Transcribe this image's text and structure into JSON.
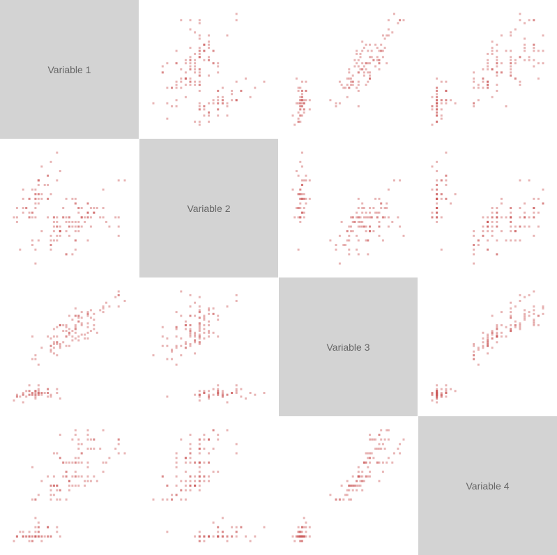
{
  "chart_data": {
    "type": "scatter",
    "title": "",
    "variables": [
      "Variable 1",
      "Variable 2",
      "Variable 3",
      "Variable 4"
    ],
    "diagonal_color": "#d3d3d3",
    "point_color": "#cd5c5c",
    "grid": false,
    "note": "Scatterplot matrix; cell (row i, col j) plots variable j on x vs variable i on y",
    "observations": [
      [
        5.1,
        3.5,
        1.4,
        0.2
      ],
      [
        4.9,
        3.0,
        1.4,
        0.2
      ],
      [
        4.7,
        3.2,
        1.3,
        0.2
      ],
      [
        4.6,
        3.1,
        1.5,
        0.2
      ],
      [
        5.0,
        3.6,
        1.4,
        0.2
      ],
      [
        5.4,
        3.9,
        1.7,
        0.4
      ],
      [
        4.6,
        3.4,
        1.4,
        0.3
      ],
      [
        5.0,
        3.4,
        1.5,
        0.2
      ],
      [
        4.4,
        2.9,
        1.4,
        0.2
      ],
      [
        4.9,
        3.1,
        1.5,
        0.1
      ],
      [
        5.4,
        3.7,
        1.5,
        0.2
      ],
      [
        4.8,
        3.4,
        1.6,
        0.2
      ],
      [
        4.8,
        3.0,
        1.4,
        0.1
      ],
      [
        4.3,
        3.0,
        1.1,
        0.1
      ],
      [
        5.8,
        4.0,
        1.2,
        0.2
      ],
      [
        5.7,
        4.4,
        1.5,
        0.4
      ],
      [
        5.4,
        3.9,
        1.3,
        0.4
      ],
      [
        5.1,
        3.5,
        1.4,
        0.3
      ],
      [
        5.7,
        3.8,
        1.7,
        0.3
      ],
      [
        5.1,
        3.8,
        1.5,
        0.3
      ],
      [
        5.4,
        3.4,
        1.7,
        0.2
      ],
      [
        5.1,
        3.7,
        1.5,
        0.4
      ],
      [
        4.6,
        3.6,
        1.0,
        0.2
      ],
      [
        5.1,
        3.3,
        1.7,
        0.5
      ],
      [
        4.8,
        3.4,
        1.9,
        0.2
      ],
      [
        5.0,
        3.0,
        1.6,
        0.2
      ],
      [
        5.0,
        3.4,
        1.6,
        0.4
      ],
      [
        5.2,
        3.5,
        1.5,
        0.2
      ],
      [
        5.2,
        3.4,
        1.4,
        0.2
      ],
      [
        4.7,
        3.2,
        1.6,
        0.2
      ],
      [
        4.8,
        3.1,
        1.6,
        0.2
      ],
      [
        5.4,
        3.4,
        1.5,
        0.4
      ],
      [
        5.2,
        4.1,
        1.5,
        0.1
      ],
      [
        5.5,
        4.2,
        1.4,
        0.2
      ],
      [
        4.9,
        3.1,
        1.5,
        0.2
      ],
      [
        5.0,
        3.2,
        1.2,
        0.2
      ],
      [
        5.5,
        3.5,
        1.3,
        0.2
      ],
      [
        4.9,
        3.6,
        1.4,
        0.1
      ],
      [
        4.4,
        3.0,
        1.3,
        0.2
      ],
      [
        5.1,
        3.4,
        1.5,
        0.2
      ],
      [
        5.0,
        3.5,
        1.3,
        0.3
      ],
      [
        4.5,
        2.3,
        1.3,
        0.3
      ],
      [
        4.4,
        3.2,
        1.3,
        0.2
      ],
      [
        5.0,
        3.5,
        1.6,
        0.6
      ],
      [
        5.1,
        3.8,
        1.9,
        0.4
      ],
      [
        4.8,
        3.0,
        1.4,
        0.3
      ],
      [
        5.1,
        3.8,
        1.6,
        0.2
      ],
      [
        4.6,
        3.2,
        1.4,
        0.2
      ],
      [
        5.3,
        3.7,
        1.5,
        0.2
      ],
      [
        5.0,
        3.3,
        1.4,
        0.2
      ],
      [
        7.0,
        3.2,
        4.7,
        1.4
      ],
      [
        6.4,
        3.2,
        4.5,
        1.5
      ],
      [
        6.9,
        3.1,
        4.9,
        1.5
      ],
      [
        5.5,
        2.3,
        4.0,
        1.3
      ],
      [
        6.5,
        2.8,
        4.6,
        1.5
      ],
      [
        5.7,
        2.8,
        4.5,
        1.3
      ],
      [
        6.3,
        3.3,
        4.7,
        1.6
      ],
      [
        4.9,
        2.4,
        3.3,
        1.0
      ],
      [
        6.6,
        2.9,
        4.6,
        1.3
      ],
      [
        5.2,
        2.7,
        3.9,
        1.4
      ],
      [
        5.0,
        2.0,
        3.5,
        1.0
      ],
      [
        5.9,
        3.0,
        4.2,
        1.5
      ],
      [
        6.0,
        2.2,
        4.0,
        1.0
      ],
      [
        6.1,
        2.9,
        4.7,
        1.4
      ],
      [
        5.6,
        2.9,
        3.6,
        1.3
      ],
      [
        6.7,
        3.1,
        4.4,
        1.4
      ],
      [
        5.6,
        3.0,
        4.5,
        1.5
      ],
      [
        5.8,
        2.7,
        4.1,
        1.0
      ],
      [
        6.2,
        2.2,
        4.5,
        1.5
      ],
      [
        5.6,
        2.5,
        3.9,
        1.1
      ],
      [
        5.9,
        3.2,
        4.8,
        1.8
      ],
      [
        6.1,
        2.8,
        4.0,
        1.3
      ],
      [
        6.3,
        2.5,
        4.9,
        1.5
      ],
      [
        6.1,
        2.8,
        4.7,
        1.2
      ],
      [
        6.4,
        2.9,
        4.3,
        1.3
      ],
      [
        6.6,
        3.0,
        4.4,
        1.4
      ],
      [
        6.8,
        2.8,
        4.8,
        1.4
      ],
      [
        6.7,
        3.0,
        5.0,
        1.7
      ],
      [
        6.0,
        2.9,
        4.5,
        1.5
      ],
      [
        5.7,
        2.6,
        3.5,
        1.0
      ],
      [
        5.5,
        2.4,
        3.8,
        1.1
      ],
      [
        5.5,
        2.4,
        3.7,
        1.0
      ],
      [
        5.8,
        2.7,
        3.9,
        1.2
      ],
      [
        6.0,
        2.7,
        5.1,
        1.6
      ],
      [
        5.4,
        3.0,
        4.5,
        1.5
      ],
      [
        6.0,
        3.4,
        4.5,
        1.6
      ],
      [
        6.7,
        3.1,
        4.7,
        1.5
      ],
      [
        6.3,
        2.3,
        4.4,
        1.3
      ],
      [
        5.6,
        3.0,
        4.1,
        1.3
      ],
      [
        5.5,
        2.5,
        4.0,
        1.3
      ],
      [
        5.5,
        2.6,
        4.4,
        1.2
      ],
      [
        6.1,
        3.0,
        4.6,
        1.4
      ],
      [
        5.8,
        2.6,
        4.0,
        1.2
      ],
      [
        5.0,
        2.3,
        3.3,
        1.0
      ],
      [
        5.6,
        2.7,
        4.2,
        1.3
      ],
      [
        5.7,
        3.0,
        4.2,
        1.2
      ],
      [
        5.7,
        2.9,
        4.2,
        1.3
      ],
      [
        6.2,
        2.9,
        4.3,
        1.3
      ],
      [
        5.1,
        2.5,
        3.0,
        1.1
      ],
      [
        5.7,
        2.8,
        4.1,
        1.3
      ],
      [
        6.3,
        3.3,
        6.0,
        2.5
      ],
      [
        5.8,
        2.7,
        5.1,
        1.9
      ],
      [
        7.1,
        3.0,
        5.9,
        2.1
      ],
      [
        6.3,
        2.9,
        5.6,
        1.8
      ],
      [
        6.5,
        3.0,
        5.8,
        2.2
      ],
      [
        7.6,
        3.0,
        6.6,
        2.1
      ],
      [
        4.9,
        2.5,
        4.5,
        1.7
      ],
      [
        7.3,
        2.9,
        6.3,
        1.8
      ],
      [
        6.7,
        2.5,
        5.8,
        1.8
      ],
      [
        7.2,
        3.6,
        6.1,
        2.5
      ],
      [
        6.5,
        3.2,
        5.1,
        2.0
      ],
      [
        6.4,
        2.7,
        5.3,
        1.9
      ],
      [
        6.8,
        3.0,
        5.5,
        2.1
      ],
      [
        5.7,
        2.5,
        5.0,
        2.0
      ],
      [
        5.8,
        2.8,
        5.1,
        2.4
      ],
      [
        6.4,
        3.2,
        5.3,
        2.3
      ],
      [
        6.5,
        3.0,
        5.5,
        1.8
      ],
      [
        7.7,
        3.8,
        6.7,
        2.2
      ],
      [
        7.7,
        2.6,
        6.9,
        2.3
      ],
      [
        6.0,
        2.2,
        5.0,
        1.5
      ],
      [
        6.9,
        3.2,
        5.7,
        2.3
      ],
      [
        5.6,
        2.8,
        4.9,
        2.0
      ],
      [
        7.7,
        2.8,
        6.7,
        2.0
      ],
      [
        6.3,
        2.7,
        4.9,
        1.8
      ],
      [
        6.7,
        3.3,
        5.7,
        2.1
      ],
      [
        7.2,
        3.2,
        6.0,
        1.8
      ],
      [
        6.2,
        2.8,
        4.8,
        1.8
      ],
      [
        6.1,
        3.0,
        4.9,
        1.8
      ],
      [
        6.4,
        2.8,
        5.6,
        2.1
      ],
      [
        7.2,
        3.0,
        5.8,
        1.6
      ],
      [
        7.4,
        2.8,
        6.1,
        1.9
      ],
      [
        7.9,
        3.8,
        6.4,
        2.0
      ],
      [
        6.4,
        2.8,
        5.6,
        2.2
      ],
      [
        6.3,
        2.8,
        5.1,
        1.5
      ],
      [
        6.1,
        2.6,
        5.6,
        1.4
      ],
      [
        7.7,
        3.0,
        6.1,
        2.3
      ],
      [
        6.3,
        3.4,
        5.6,
        2.4
      ],
      [
        6.4,
        3.1,
        5.5,
        1.8
      ],
      [
        6.0,
        3.0,
        4.8,
        1.8
      ],
      [
        6.9,
        3.1,
        5.4,
        2.1
      ],
      [
        6.7,
        3.1,
        5.6,
        2.4
      ],
      [
        6.9,
        3.1,
        5.1,
        2.3
      ],
      [
        5.8,
        2.7,
        5.1,
        1.9
      ],
      [
        6.8,
        3.2,
        5.9,
        2.3
      ],
      [
        6.7,
        3.3,
        5.7,
        2.5
      ],
      [
        6.7,
        3.0,
        5.2,
        2.3
      ],
      [
        6.3,
        2.5,
        5.0,
        1.9
      ],
      [
        6.5,
        3.0,
        5.2,
        2.0
      ],
      [
        6.2,
        3.4,
        5.4,
        2.3
      ],
      [
        5.9,
        3.0,
        5.1,
        1.8
      ]
    ]
  }
}
